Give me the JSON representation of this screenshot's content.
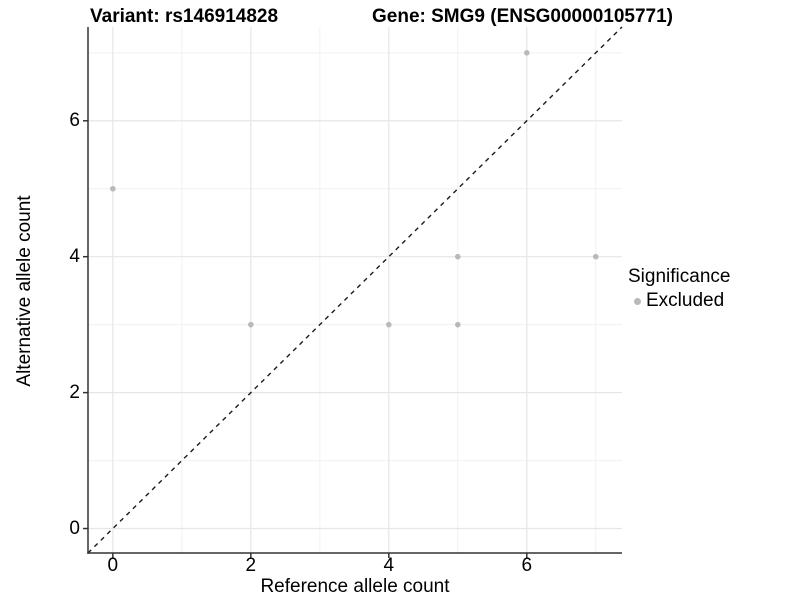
{
  "title": {
    "variant": "Variant: rs146914828",
    "gene": "Gene: SMG9 (ENSG00000105771)"
  },
  "chart_data": {
    "type": "scatter",
    "title": "Variant: rs146914828  Gene: SMG9 (ENSG00000105771)",
    "xlabel": "Reference allele count",
    "ylabel": "Alternative allele count",
    "points": [
      {
        "x": 0,
        "y": 5
      },
      {
        "x": 2,
        "y": 3
      },
      {
        "x": 4,
        "y": 3
      },
      {
        "x": 5,
        "y": 3
      },
      {
        "x": 5,
        "y": 4
      },
      {
        "x": 6,
        "y": 7
      },
      {
        "x": 7,
        "y": 4
      }
    ],
    "xlim": [
      -0.36,
      7.38
    ],
    "ylim": [
      -0.36,
      7.38
    ],
    "x_ticks": [
      0,
      2,
      4,
      6
    ],
    "y_ticks": [
      0,
      2,
      4,
      6
    ],
    "minor_gridlines": [
      1,
      3,
      5,
      7
    ],
    "identity_line": {
      "style": "dashed",
      "color": "#1a1a1a",
      "equation": "y = x"
    },
    "grid": true,
    "point_color": "#b9b9b9",
    "major_grid_color": "#e6e6e6",
    "minor_grid_color": "#f1f1f1",
    "axis_line_color": "#333333",
    "legend": {
      "title": "Significance",
      "position": "right",
      "items": [
        {
          "label": "Excluded",
          "color": "#b9b9b9"
        }
      ]
    }
  }
}
